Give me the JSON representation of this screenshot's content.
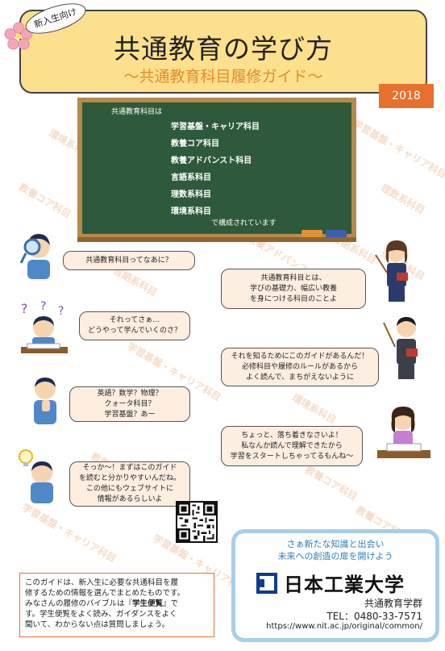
{
  "header": {
    "tag": "新入生向け",
    "title": "共通教育の学び方",
    "subtitle": "〜共通教育科目履修ガイド〜",
    "year": "2018"
  },
  "board": {
    "intro": "共通教育科目は",
    "items": [
      "学習基盤・キャリア科目",
      "教養コア科目",
      "教養アドバンスト科目",
      "言語系科目",
      "理数系科目",
      "環境系科目"
    ],
    "outro": "で構成されています"
  },
  "dialogue": {
    "s1": [
      "共通教育科目ってなあに？"
    ],
    "t1": [
      "共通教育科目とは、",
      "学びの基礎力、幅広い教養",
      "を身につける科目のことよ"
    ],
    "s2": [
      "それってさぁ…",
      "どうやって学んでいくのさ？"
    ],
    "t2": [
      "それを知るためにこのガイドがあるんだ！",
      "必修科目や履修のルールがあるから",
      "よく読んで、まちがえないように"
    ],
    "s3": [
      "英語？数学？物理？",
      "クォータ科目？",
      "学習基盤？あー"
    ],
    "t3": [
      "ちょっと、落ち着きなさいよ！",
      "私なんか読んで理解できたから",
      "学習をスタートしちゃってるもんね〜"
    ],
    "s4": [
      "そっか〜！まずはこのガイド",
      "を読むと分かりやすいんだね。",
      "この他にもウェブサイトに",
      "情報があるらしいよ"
    ]
  },
  "note": {
    "line1": "このガイドは、新入生に必要な共通科目を履",
    "line2": "修するための情報を選んでまとめたものです。",
    "line3_pre": "みなさんの履修のバイブルは『",
    "line3_bold": "学生便覧",
    "line3_post": "』で",
    "line4": "す。学生便覧をよく読み、ガイダンスをよく",
    "line5": "聞いて、わからない点は質問しましょう。"
  },
  "card": {
    "slogan1": "さぁ新たな知識と出会い",
    "slogan2": "未来への創造の扉を開けよう",
    "university": "日本工業大学",
    "department": "共通教育学群",
    "tel": "TEL：0480-33-7571",
    "url": "https://www.nit.ac.jp/original/common/"
  },
  "watermarks": [
    "環境系科目",
    "学習基盤・キャリア科目",
    "教養コア科目",
    "理数系科目",
    "教養アドバンスト科目",
    "言語系科目",
    "環境系科目",
    "学習基盤・キャリア科目",
    "教養アドバンスト科目",
    "環境系科目",
    "教養コア科目",
    "学習基盤・キャリア科目",
    "学習基盤・キャリア科目",
    "教養コア科目",
    "言語系科目"
  ],
  "colors": {
    "banner": "#fce08d",
    "accent": "#e8702e",
    "board": "#2e5a3b",
    "frame": "#b58a4c",
    "card_border": "#a9cde9",
    "link_blue": "#2f7fbd"
  }
}
